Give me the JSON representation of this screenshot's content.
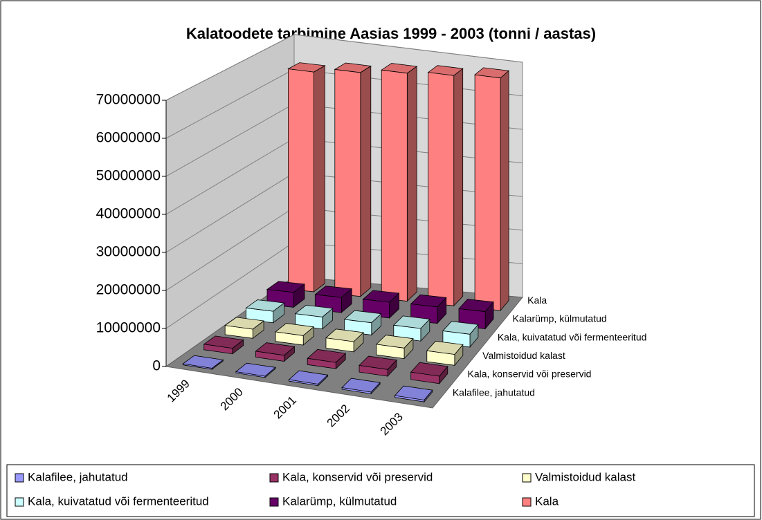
{
  "chart_data": {
    "type": "bar3d",
    "title": "Kalatoodete tarbimine Aasias 1999 - 2003 (tonni / aastas)",
    "categories": [
      "1999",
      "2000",
      "2001",
      "2002",
      "2003"
    ],
    "series": [
      {
        "name": "Kalafilee, jahutatud",
        "color": "#9999ff",
        "values": [
          300000,
          350000,
          400000,
          450000,
          500000
        ]
      },
      {
        "name": "Kala, konservid või preservid",
        "color": "#993366",
        "values": [
          1500000,
          1600000,
          1700000,
          1800000,
          2000000
        ]
      },
      {
        "name": "Valmistoidud kalast",
        "color": "#ffffcc",
        "values": [
          2500000,
          2600000,
          2800000,
          2900000,
          3000000
        ]
      },
      {
        "name": "Kala, kuivatatud või fermenteeritud",
        "color": "#ccffff",
        "values": [
          3200000,
          3300000,
          3400000,
          3500000,
          3600000
        ]
      },
      {
        "name": "Kalarümp, külmutatud",
        "color": "#660066",
        "values": [
          4200000,
          4300000,
          4500000,
          4700000,
          4900000
        ]
      },
      {
        "name": "Kala",
        "color": "#ff8080",
        "values": [
          63000000,
          64500000,
          66000000,
          67000000,
          68000000
        ]
      }
    ],
    "ylim": [
      0,
      70000000
    ],
    "yticks": [
      0,
      10000000,
      20000000,
      30000000,
      40000000,
      50000000,
      60000000,
      70000000
    ],
    "grid": true
  }
}
